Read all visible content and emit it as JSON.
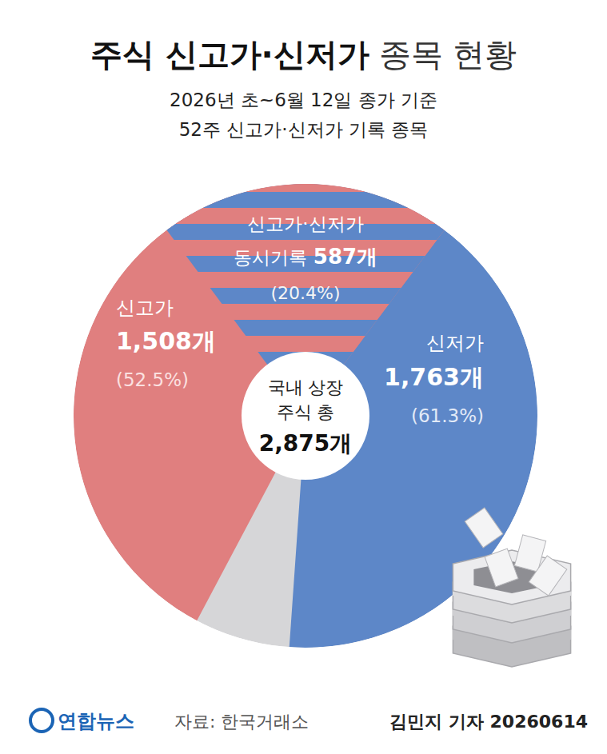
{
  "chart_data": {
    "type": "pie",
    "title": [
      "주식 신고가·신저가",
      "종목 현황"
    ],
    "subtitle": [
      "2026년 초~6월 12일 종가 기준",
      "52주 신고가·신저가 기록 종목"
    ],
    "categories": [
      "신고가",
      "신저가",
      "신고가·신저가 동시기록"
    ],
    "values": [
      1508,
      1763,
      587
    ],
    "value_labels": [
      "1,508개",
      "1,763개",
      "587개"
    ],
    "percent": [
      52.5,
      61.3,
      20.4
    ],
    "percent_labels": [
      "(52.5%)",
      "(61.3%)",
      "(20.4%)"
    ],
    "colors": [
      "#e07f7f",
      "#5d87c8",
      "#5d87c8"
    ],
    "total": {
      "label": [
        "국내 상장",
        "주식 총"
      ],
      "value": 2875,
      "value_label": "2,875개"
    },
    "data_labels": true,
    "logo": "연합뉴스",
    "source": "자료: 한국거래소",
    "credit": "김민지 기자 20260614"
  }
}
